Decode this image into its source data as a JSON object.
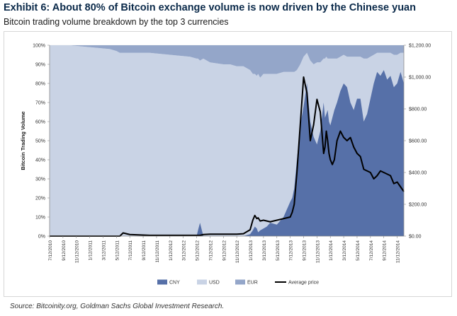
{
  "header": {
    "title": "Exhibit 6: About 80% of Bitcoin exchange volume is now driven by the Chinese yuan",
    "subtitle": "Bitcoin trading volume breakdown by the top 3 currencies"
  },
  "footer": {
    "source": "Source: Bitcoinity.org, Goldman Sachs Global Investment Research."
  },
  "chart_data": {
    "type": "area",
    "title": "",
    "ylabel": "Bitcoin Trading Volume",
    "xlabel": "",
    "x_tick_labels": [
      "7/12/2010",
      "9/12/2010",
      "11/12/2010",
      "1/12/2011",
      "3/12/2011",
      "5/12/2011",
      "7/12/2011",
      "9/12/2011",
      "11/12/2011",
      "1/12/2012",
      "3/12/2012",
      "5/12/2012",
      "7/12/2012",
      "9/12/2012",
      "11/12/2012",
      "1/12/2013",
      "3/12/2013",
      "5/12/2013",
      "7/12/2013",
      "9/12/2013",
      "11/12/2013",
      "1/12/2014",
      "3/12/2014",
      "5/12/2014",
      "7/12/2014",
      "9/12/2014",
      "11/12/2014"
    ],
    "y_left": {
      "ticks": [
        "0%",
        "10%",
        "20%",
        "30%",
        "40%",
        "50%",
        "60%",
        "70%",
        "80%",
        "90%",
        "100%"
      ],
      "range": [
        0,
        100
      ],
      "unit": "%"
    },
    "y_right": {
      "ticks": [
        "$0.00",
        "$200.00",
        "$400.00",
        "$600.00",
        "$800.00",
        "$1,000.00",
        "$1,200.00"
      ],
      "range": [
        0,
        1200
      ],
      "unit": "USD"
    },
    "legend": {
      "position": "bottom",
      "entries": [
        "CNY",
        "USD",
        "EUR",
        "Average price"
      ]
    },
    "colors": {
      "CNY": "#5670a8",
      "USD": "#c9d3e5",
      "EUR": "#94a6c9",
      "price": "#000000"
    },
    "x_months_since_start": [
      0,
      3,
      6,
      9,
      10,
      10.5,
      11,
      12,
      15,
      18,
      21,
      22,
      22.2,
      22.5,
      23,
      24,
      26,
      27,
      28,
      29,
      30,
      30.4,
      30.7,
      31,
      31.2,
      31.5,
      32,
      32.5,
      33,
      34,
      35,
      36,
      36.3,
      36.6,
      37,
      37.5,
      38,
      38.5,
      39,
      39.5,
      40,
      40.5,
      41,
      41.2,
      41.4,
      41.6,
      41.8,
      42,
      42.3,
      42.6,
      43,
      43.5,
      44,
      44.5,
      45,
      45.5,
      46,
      46.5,
      47,
      47.5,
      48,
      48.5,
      49,
      49.5,
      50,
      50.5,
      51,
      51.5,
      52,
      52.5,
      53
    ],
    "series": [
      {
        "name": "CNY",
        "unit": "%",
        "values": [
          0,
          0,
          0,
          0,
          0,
          0,
          0,
          0,
          0,
          0,
          0,
          0,
          3,
          7,
          0,
          0,
          0,
          0,
          0,
          0,
          1,
          3,
          5,
          4,
          2,
          3,
          4,
          5,
          7,
          6,
          10,
          18,
          20,
          25,
          40,
          58,
          68,
          80,
          60,
          52,
          48,
          55,
          70,
          62,
          64,
          66,
          60,
          58,
          62,
          66,
          70,
          76,
          80,
          78,
          70,
          66,
          72,
          72,
          60,
          64,
          72,
          80,
          86,
          84,
          87,
          82,
          84,
          78,
          80,
          86,
          80
        ]
      },
      {
        "name": "USD",
        "unit": "%",
        "values": [
          100,
          100,
          99,
          98,
          97,
          96,
          96,
          96,
          96,
          95,
          94,
          93,
          90,
          85,
          93,
          91,
          90,
          90,
          89,
          89,
          86,
          82,
          80,
          80,
          83,
          80,
          81,
          80,
          78,
          79,
          76,
          68,
          66,
          61,
          47,
          32,
          26,
          16,
          32,
          38,
          43,
          36,
          23,
          31,
          30,
          27,
          33,
          35,
          31,
          27,
          23,
          18,
          15,
          16,
          24,
          28,
          22,
          22,
          33,
          29,
          22,
          15,
          10,
          12,
          9,
          14,
          12,
          17,
          15,
          10,
          16
        ]
      },
      {
        "name": "EUR",
        "unit": "%",
        "values": [
          0,
          0,
          1,
          2,
          3,
          4,
          4,
          4,
          4,
          5,
          6,
          7,
          7,
          8,
          7,
          9,
          10,
          10,
          11,
          11,
          13,
          15,
          15,
          16,
          15,
          17,
          15,
          15,
          15,
          15,
          14,
          14,
          14,
          14,
          13,
          10,
          6,
          4,
          8,
          10,
          9,
          9,
          7,
          7,
          6,
          7,
          7,
          7,
          7,
          7,
          7,
          6,
          5,
          6,
          6,
          6,
          6,
          6,
          7,
          7,
          6,
          5,
          4,
          4,
          4,
          4,
          4,
          5,
          5,
          4,
          4
        ]
      },
      {
        "name": "Average price",
        "unit": "USD",
        "values": [
          0,
          0,
          0,
          0,
          0,
          0,
          20,
          10,
          5,
          5,
          5,
          5,
          5,
          5,
          10,
          12,
          12,
          12,
          12,
          15,
          40,
          100,
          130,
          110,
          115,
          95,
          100,
          95,
          90,
          100,
          110,
          120,
          150,
          200,
          400,
          700,
          1000,
          900,
          600,
          700,
          860,
          780,
          520,
          560,
          660,
          600,
          520,
          480,
          450,
          480,
          600,
          660,
          620,
          600,
          620,
          560,
          520,
          500,
          420,
          410,
          400,
          360,
          380,
          410,
          400,
          390,
          380,
          330,
          340,
          310,
          280
        ]
      }
    ]
  }
}
